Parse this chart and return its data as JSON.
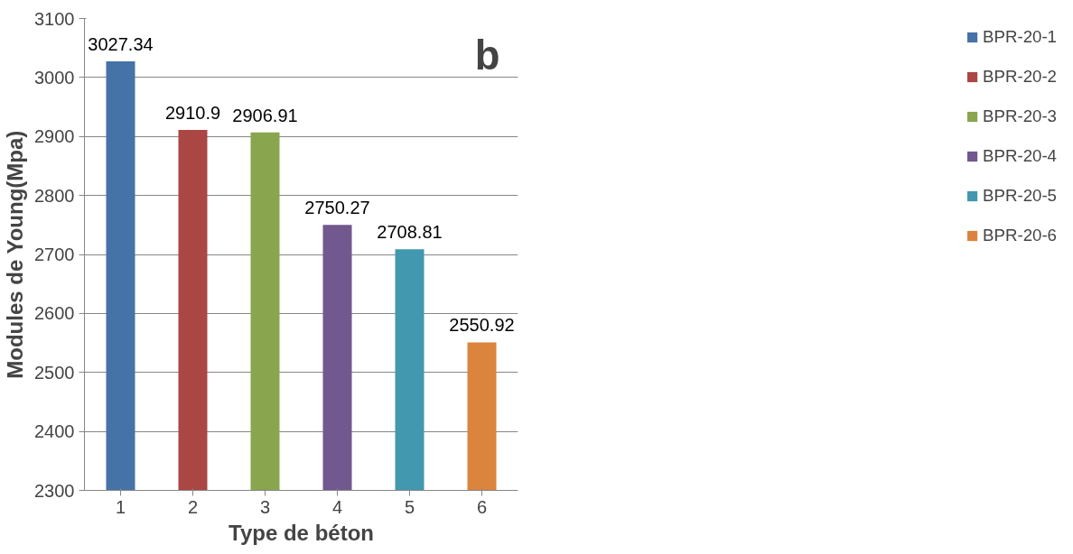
{
  "chart_data": {
    "type": "bar",
    "title": "b",
    "xlabel": "Type de béton",
    "ylabel": "Modules de Young(Mpa)",
    "categories": [
      "1",
      "2",
      "3",
      "4",
      "5",
      "6"
    ],
    "series": [
      {
        "name": "BPR-20-1",
        "color": "#4572a7",
        "values": [
          3027.34,
          null,
          null,
          null,
          null,
          null
        ]
      },
      {
        "name": "BPR-20-2",
        "color": "#aa4643",
        "values": [
          null,
          2910.9,
          null,
          null,
          null,
          null
        ]
      },
      {
        "name": "BPR-20-3",
        "color": "#89a54e",
        "values": [
          null,
          null,
          2906.91,
          null,
          null,
          null
        ]
      },
      {
        "name": "BPR-20-4",
        "color": "#71588f",
        "values": [
          null,
          null,
          null,
          2750.27,
          null,
          null
        ]
      },
      {
        "name": "BPR-20-5",
        "color": "#4198af",
        "values": [
          null,
          null,
          null,
          null,
          2708.81,
          null
        ]
      },
      {
        "name": "BPR-20-6",
        "color": "#db843d",
        "values": [
          null,
          null,
          null,
          null,
          null,
          2550.92
        ]
      }
    ],
    "ylim": [
      2300,
      3100
    ],
    "yticks": [
      2300,
      2400,
      2500,
      2600,
      2700,
      2800,
      2900,
      3000,
      3100
    ],
    "grid": "y",
    "legend": "right",
    "data_labels": true
  }
}
